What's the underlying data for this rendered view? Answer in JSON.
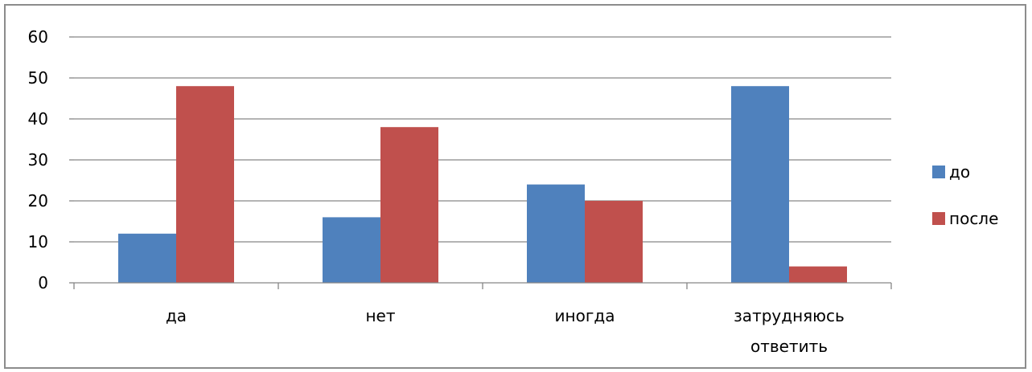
{
  "chart_data": {
    "type": "bar",
    "title": "",
    "xlabel": "",
    "ylabel": "",
    "categories": [
      "да",
      "нет",
      "иногда",
      "затрудняюсь ответить"
    ],
    "category_lines": [
      [
        "да"
      ],
      [
        "нет"
      ],
      [
        "иногда"
      ],
      [
        "затрудняюсь",
        "ответить"
      ]
    ],
    "series": [
      {
        "name": "до",
        "values": [
          12,
          16,
          24,
          48
        ],
        "color": "#4f81bd"
      },
      {
        "name": "после",
        "values": [
          48,
          38,
          20,
          4
        ],
        "color": "#c0504d"
      }
    ],
    "ylim": [
      0,
      60
    ],
    "yticks": [
      0,
      10,
      20,
      30,
      40,
      50,
      60
    ],
    "grid": true,
    "gridline_color": "#868686",
    "legend_position": "right"
  }
}
